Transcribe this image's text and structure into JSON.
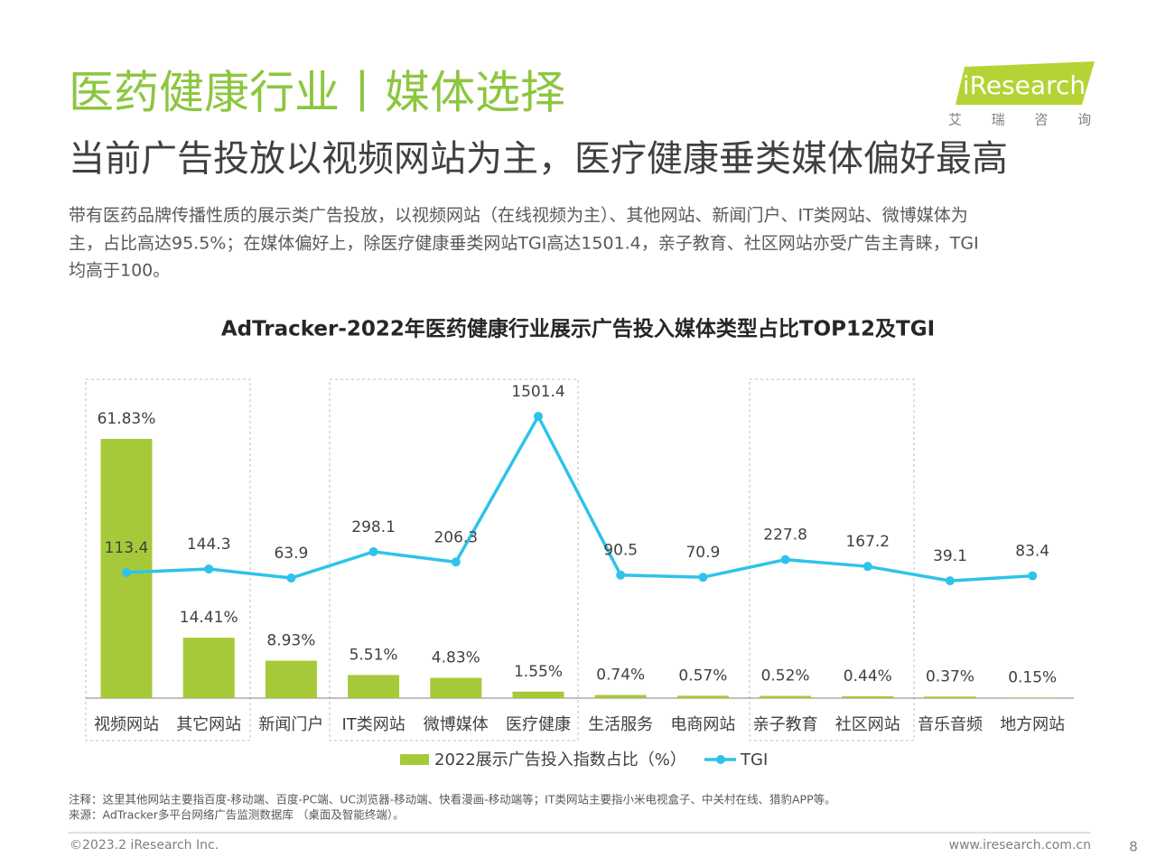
{
  "title": "医药健康行业丨媒体选择",
  "subtitle": "当前广告投放以视频网站为主，医疗健康垂类媒体偏好最高",
  "description": [
    "带有医药品牌传播性质的展示类广告投放，以视频网站（在线视频为主）、其他网站、新闻门户、IT类网站、微博媒体为",
    "主，占比高达95.5%；在媒体偏好上，除医疗健康垂类网站TGI高达1501.4，亲子教育、社区网站亦受广告主青睐，TGI",
    "均高于100。"
  ],
  "logo": {
    "name": "iResearch",
    "cn": "艾 瑞 咨 询"
  },
  "chart_data": {
    "type": "combo",
    "title": "AdTracker-2022年医药健康行业展示广告投入媒体类型占比TOP12及TGI",
    "categories": [
      "视频网站",
      "其它网站",
      "新闻门户",
      "IT类网站",
      "微博媒体",
      "医疗健康",
      "生活服务",
      "电商网站",
      "亲子教育",
      "社区网站",
      "音乐音频",
      "地方网站"
    ],
    "series": [
      {
        "name": "2022展示广告投入指数占比（%）",
        "type": "bar",
        "color": "#a6c93a",
        "values": [
          61.83,
          14.41,
          8.93,
          5.51,
          4.83,
          1.55,
          0.74,
          0.57,
          0.52,
          0.44,
          0.37,
          0.15
        ],
        "value_labels": [
          "61.83%",
          "14.41%",
          "8.93%",
          "5.51%",
          "4.83%",
          "1.55%",
          "0.74%",
          "0.57%",
          "0.52%",
          "0.44%",
          "0.37%",
          "0.15%"
        ]
      },
      {
        "name": "TGI",
        "type": "line",
        "color": "#2ec3ea",
        "values": [
          113.4,
          144.3,
          63.9,
          298.1,
          206.3,
          1501.4,
          90.5,
          70.9,
          227.8,
          167.2,
          39.1,
          83.4
        ]
      }
    ],
    "legend": "bottom"
  },
  "notes": [
    "注释：这里其他网站主要指百度-移动端、百度-PC端、UC浏览器-移动端、快看漫画-移动端等；IT类网站主要指小米电视盒子、中关村在线、猎豹APP等。",
    "来源：AdTracker多平台网络广告监测数据库 （桌面及智能终端）。"
  ],
  "footer": {
    "copyright": "©2023.2 iResearch Inc.",
    "url": "www.iresearch.com.cn",
    "page": "8"
  }
}
